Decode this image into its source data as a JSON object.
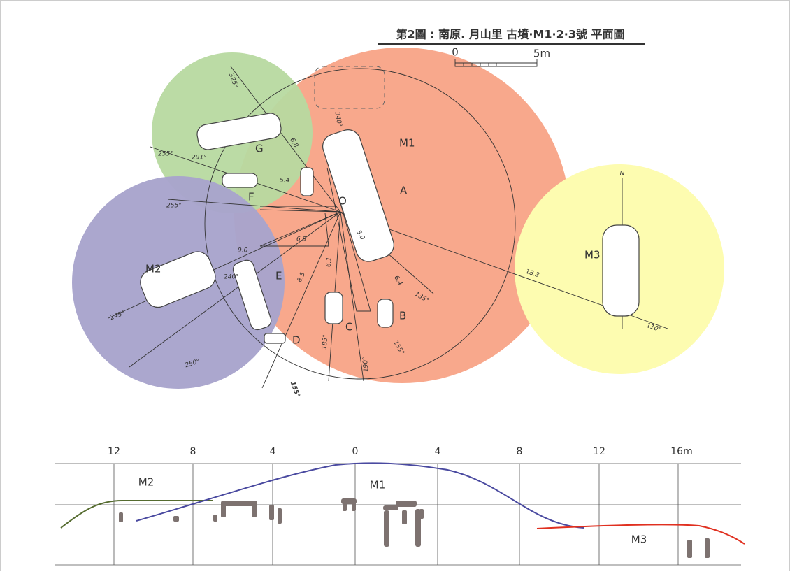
{
  "title": "第2圖 : 南原. 月山里 古墳·M1·2·3號 平面圖",
  "scale": {
    "start": "0",
    "end": "5m"
  },
  "plan": {
    "mounds": [
      "M1",
      "M2",
      "M3"
    ],
    "stones": [
      "A",
      "B",
      "C",
      "D",
      "E",
      "F",
      "G"
    ],
    "center": "O",
    "north": "N",
    "distances": [
      "6.8",
      "5.4",
      "6.9",
      "9.0",
      "8.5",
      "6.1",
      "5.0",
      "6.4",
      "18.3"
    ],
    "bearings": [
      "325°",
      "255°",
      "291°",
      "255°",
      "240°",
      "245°",
      "250°",
      "155°",
      "185°",
      "190°",
      "155°",
      "135°",
      "110°",
      "340°"
    ]
  },
  "section": {
    "ticks": [
      "12",
      "8",
      "4",
      "0",
      "4",
      "8",
      "12",
      "16m"
    ],
    "labels": [
      "M2",
      "M1",
      "M3"
    ]
  }
}
